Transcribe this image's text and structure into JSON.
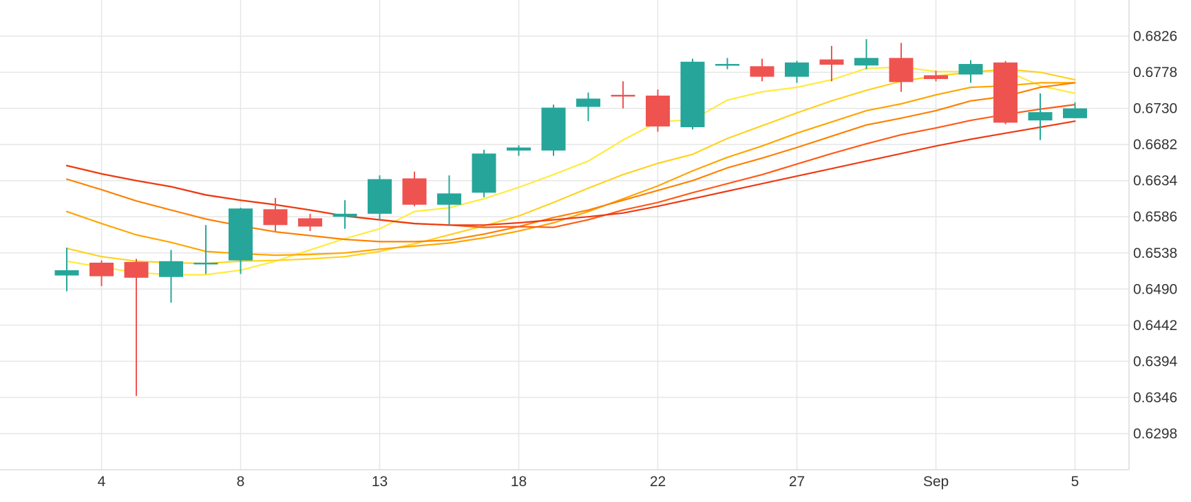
{
  "chart_data": {
    "type": "candlestick",
    "title": "",
    "xlabel": "",
    "ylabel": "",
    "ylim": [
      0.625,
      0.6874
    ],
    "y_ticks": [
      "0.6826",
      "0.6778",
      "0.6730",
      "0.6682",
      "0.6634",
      "0.6586",
      "0.6538",
      "0.6490",
      "0.6442",
      "0.6394",
      "0.6346",
      "0.6298"
    ],
    "x_tick_labels": [
      {
        "label": "4",
        "index": 1
      },
      {
        "label": "8",
        "index": 5
      },
      {
        "label": "13",
        "index": 9
      },
      {
        "label": "18",
        "index": 13
      },
      {
        "label": "22",
        "index": 17
      },
      {
        "label": "27",
        "index": 21
      },
      {
        "label": "Sep",
        "index": 25
      },
      {
        "label": "5",
        "index": 29
      }
    ],
    "grid": true,
    "colors": {
      "up": "#26a69a",
      "down": "#ef5350",
      "grid": "#e6e6e6",
      "ma_colors": [
        "#ffeb3b",
        "#ffd21f",
        "#ffa500",
        "#ff8000",
        "#ff5a14",
        "#ee3a12"
      ]
    },
    "candles": [
      {
        "o": 0.6508,
        "h": 0.6545,
        "l": 0.6487,
        "c": 0.6515
      },
      {
        "o": 0.6525,
        "h": 0.6528,
        "l": 0.6494,
        "c": 0.6507
      },
      {
        "o": 0.6526,
        "h": 0.653,
        "l": 0.6348,
        "c": 0.6505
      },
      {
        "o": 0.6506,
        "h": 0.6542,
        "l": 0.6472,
        "c": 0.6527
      },
      {
        "o": 0.6525,
        "h": 0.6575,
        "l": 0.651,
        "c": 0.6525
      },
      {
        "o": 0.6528,
        "h": 0.6598,
        "l": 0.651,
        "c": 0.6597
      },
      {
        "o": 0.6596,
        "h": 0.6611,
        "l": 0.6567,
        "c": 0.6575
      },
      {
        "o": 0.6584,
        "h": 0.659,
        "l": 0.6567,
        "c": 0.6573
      },
      {
        "o": 0.6586,
        "h": 0.6608,
        "l": 0.657,
        "c": 0.659
      },
      {
        "o": 0.659,
        "h": 0.6641,
        "l": 0.6582,
        "c": 0.6636
      },
      {
        "o": 0.6637,
        "h": 0.6646,
        "l": 0.66,
        "c": 0.6602
      },
      {
        "o": 0.6602,
        "h": 0.6641,
        "l": 0.6575,
        "c": 0.6617
      },
      {
        "o": 0.6618,
        "h": 0.6675,
        "l": 0.6612,
        "c": 0.667
      },
      {
        "o": 0.6674,
        "h": 0.6681,
        "l": 0.6667,
        "c": 0.6678
      },
      {
        "o": 0.6674,
        "h": 0.6735,
        "l": 0.6667,
        "c": 0.6731
      },
      {
        "o": 0.6732,
        "h": 0.6751,
        "l": 0.6713,
        "c": 0.6743
      },
      {
        "o": 0.6748,
        "h": 0.6766,
        "l": 0.673,
        "c": 0.6746
      },
      {
        "o": 0.6747,
        "h": 0.6755,
        "l": 0.6699,
        "c": 0.6706
      },
      {
        "o": 0.6705,
        "h": 0.6796,
        "l": 0.6702,
        "c": 0.6792
      },
      {
        "o": 0.6789,
        "h": 0.6797,
        "l": 0.6782,
        "c": 0.6789
      },
      {
        "o": 0.6786,
        "h": 0.6796,
        "l": 0.6766,
        "c": 0.6772
      },
      {
        "o": 0.6772,
        "h": 0.6793,
        "l": 0.6764,
        "c": 0.6791
      },
      {
        "o": 0.6795,
        "h": 0.6813,
        "l": 0.6766,
        "c": 0.6788
      },
      {
        "o": 0.6787,
        "h": 0.6822,
        "l": 0.6782,
        "c": 0.6797
      },
      {
        "o": 0.6797,
        "h": 0.6817,
        "l": 0.6752,
        "c": 0.6765
      },
      {
        "o": 0.6774,
        "h": 0.678,
        "l": 0.6766,
        "c": 0.6769
      },
      {
        "o": 0.6775,
        "h": 0.6794,
        "l": 0.6764,
        "c": 0.6789
      },
      {
        "o": 0.6791,
        "h": 0.6793,
        "l": 0.6709,
        "c": 0.6711
      },
      {
        "o": 0.6714,
        "h": 0.675,
        "l": 0.6688,
        "c": 0.6725
      },
      {
        "o": 0.6717,
        "h": 0.6738,
        "l": 0.6717,
        "c": 0.673
      }
    ],
    "moving_averages": [
      {
        "values": [
          0.6527,
          0.6519,
          0.6512,
          0.6509,
          0.6509,
          0.6515,
          0.6527,
          0.6542,
          0.6557,
          0.657,
          0.6593,
          0.6598,
          0.661,
          0.6625,
          0.6642,
          0.666,
          0.6688,
          0.6712,
          0.6715,
          0.6741,
          0.6752,
          0.6758,
          0.6768,
          0.6783,
          0.6785,
          0.6779,
          0.6779,
          0.678,
          0.676,
          0.675
        ]
      },
      {
        "values": [
          0.6544,
          0.6533,
          0.6527,
          0.6525,
          0.6524,
          0.6527,
          0.6528,
          0.653,
          0.6533,
          0.654,
          0.655,
          0.6562,
          0.6574,
          0.6587,
          0.6605,
          0.6624,
          0.6642,
          0.6657,
          0.6669,
          0.669,
          0.6707,
          0.6724,
          0.674,
          0.6754,
          0.6766,
          0.6773,
          0.6778,
          0.6782,
          0.6778,
          0.6768
        ]
      },
      {
        "values": [
          0.6593,
          0.6577,
          0.6562,
          0.6552,
          0.654,
          0.6537,
          0.6535,
          0.6536,
          0.6538,
          0.6543,
          0.6547,
          0.6551,
          0.6558,
          0.6567,
          0.6578,
          0.6593,
          0.661,
          0.6627,
          0.6647,
          0.6665,
          0.668,
          0.6697,
          0.6712,
          0.6727,
          0.6736,
          0.6748,
          0.6758,
          0.676,
          0.6764,
          0.6764
        ]
      },
      {
        "values": [
          0.6636,
          0.6622,
          0.6607,
          0.6595,
          0.6583,
          0.6574,
          0.6566,
          0.6561,
          0.6556,
          0.6553,
          0.6553,
          0.6555,
          0.6563,
          0.6573,
          0.6585,
          0.6595,
          0.6608,
          0.6621,
          0.6634,
          0.6651,
          0.6664,
          0.6678,
          0.6693,
          0.6708,
          0.6717,
          0.6727,
          0.674,
          0.6746,
          0.6758,
          0.6764
        ]
      },
      {
        "values": [
          0.6654,
          0.6643,
          0.6634,
          0.6626,
          0.6615,
          0.6608,
          0.6602,
          0.6595,
          0.6587,
          0.6582,
          0.6577,
          0.6575,
          0.6572,
          0.6573,
          0.6572,
          0.6582,
          0.6595,
          0.6605,
          0.6618,
          0.663,
          0.6642,
          0.6656,
          0.667,
          0.6683,
          0.6695,
          0.6704,
          0.6714,
          0.6722,
          0.6729,
          0.6735
        ]
      },
      {
        "values": [
          0.6654,
          0.6643,
          0.6634,
          0.6626,
          0.6615,
          0.6608,
          0.6602,
          0.6595,
          0.6587,
          0.6582,
          0.6577,
          0.6575,
          0.6575,
          0.6578,
          0.6582,
          0.6586,
          0.6591,
          0.66,
          0.661,
          0.662,
          0.663,
          0.664,
          0.665,
          0.666,
          0.667,
          0.668,
          0.6689,
          0.6697,
          0.6705,
          0.6713
        ]
      }
    ]
  }
}
